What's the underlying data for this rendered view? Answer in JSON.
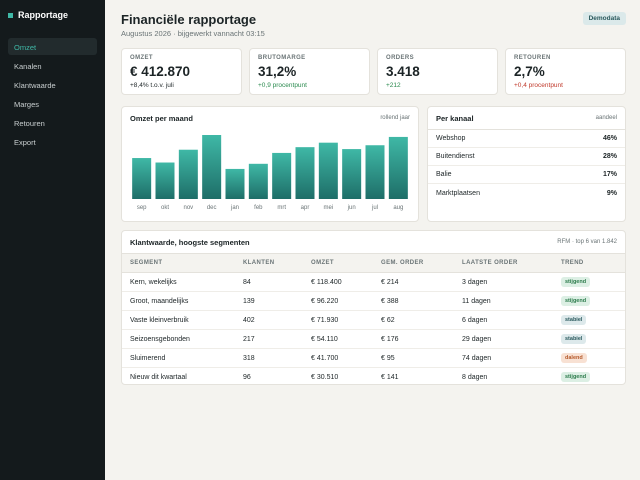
{
  "sidebar": {
    "brand": "Rapportage",
    "items": [
      {
        "label": "Omzet",
        "active": true
      },
      {
        "label": "Kanalen",
        "active": false
      },
      {
        "label": "Klantwaarde",
        "active": false
      },
      {
        "label": "Marges",
        "active": false
      },
      {
        "label": "Retouren",
        "active": false
      },
      {
        "label": "Export",
        "active": false
      }
    ]
  },
  "header": {
    "title": "Financiële rapportage",
    "subtitle": "Augustus 2026 · bijgewerkt vannacht 03:15",
    "badge": "Demodata"
  },
  "kpis": [
    {
      "label": "OMZET",
      "value": "€ 412.870",
      "delta": "+8,4% t.o.v. juli",
      "tone": "neutral"
    },
    {
      "label": "BRUTOMARGE",
      "value": "31,2%",
      "delta": "+0,9 procentpunt",
      "tone": "positive"
    },
    {
      "label": "ORDERS",
      "value": "3.418",
      "delta": "+212",
      "tone": "positive"
    },
    {
      "label": "RETOUREN",
      "value": "2,7%",
      "delta": "+0,4 procentpunt",
      "tone": "negative"
    }
  ],
  "colors": {
    "positive": "#2a8a4e",
    "negative": "#c0392b",
    "neutral": "#1c2426",
    "bar_top": "#3fb8a6",
    "bar_bottom": "#1e6e68"
  },
  "chart": {
    "title": "Omzet per maand",
    "meta": "rollend jaar"
  },
  "chart_data": {
    "type": "bar",
    "categories": [
      "sep",
      "okt",
      "nov",
      "dec",
      "jan",
      "feb",
      "mrt",
      "apr",
      "mei",
      "jun",
      "jul",
      "aug"
    ],
    "values": [
      64,
      57,
      77,
      100,
      47,
      55,
      72,
      81,
      88,
      78,
      84,
      97
    ],
    "ylim": [
      0,
      100
    ]
  },
  "channels": {
    "title": "Per kanaal",
    "meta": "aandeel",
    "rows": [
      {
        "name": "Webshop",
        "value": "46%"
      },
      {
        "name": "Buitendienst",
        "value": "28%"
      },
      {
        "name": "Balie",
        "value": "17%"
      },
      {
        "name": "Marktplaatsen",
        "value": "9%"
      }
    ]
  },
  "segments": {
    "title": "Klantwaarde, hoogste segmenten",
    "meta": "RFM · top 6 van 1.842",
    "columns": [
      "SEGMENT",
      "KLANTEN",
      "OMZET",
      "GEM. ORDER",
      "LAATSTE ORDER",
      "TREND"
    ],
    "rows": [
      {
        "segment": "Kern, wekelijks",
        "klanten": "84",
        "omzet": "€ 118.400",
        "gem": "€ 214",
        "laatste": "3 dagen",
        "trend": "stijgend",
        "tone": "up"
      },
      {
        "segment": "Groot, maandelijks",
        "klanten": "139",
        "omzet": "€ 96.220",
        "gem": "€ 388",
        "laatste": "11 dagen",
        "trend": "stijgend",
        "tone": "up"
      },
      {
        "segment": "Vaste kleinverbruik",
        "klanten": "402",
        "omzet": "€ 71.930",
        "gem": "€ 62",
        "laatste": "6 dagen",
        "trend": "stabiel",
        "tone": "flat"
      },
      {
        "segment": "Seizoensgebonden",
        "klanten": "217",
        "omzet": "€ 54.110",
        "gem": "€ 176",
        "laatste": "29 dagen",
        "trend": "stabiel",
        "tone": "flat"
      },
      {
        "segment": "Sluimerend",
        "klanten": "318",
        "omzet": "€ 41.700",
        "gem": "€ 95",
        "laatste": "74 dagen",
        "trend": "dalend",
        "tone": "down"
      },
      {
        "segment": "Nieuw dit kwartaal",
        "klanten": "96",
        "omzet": "€ 30.510",
        "gem": "€ 141",
        "laatste": "8 dagen",
        "trend": "stijgend",
        "tone": "up"
      }
    ]
  }
}
